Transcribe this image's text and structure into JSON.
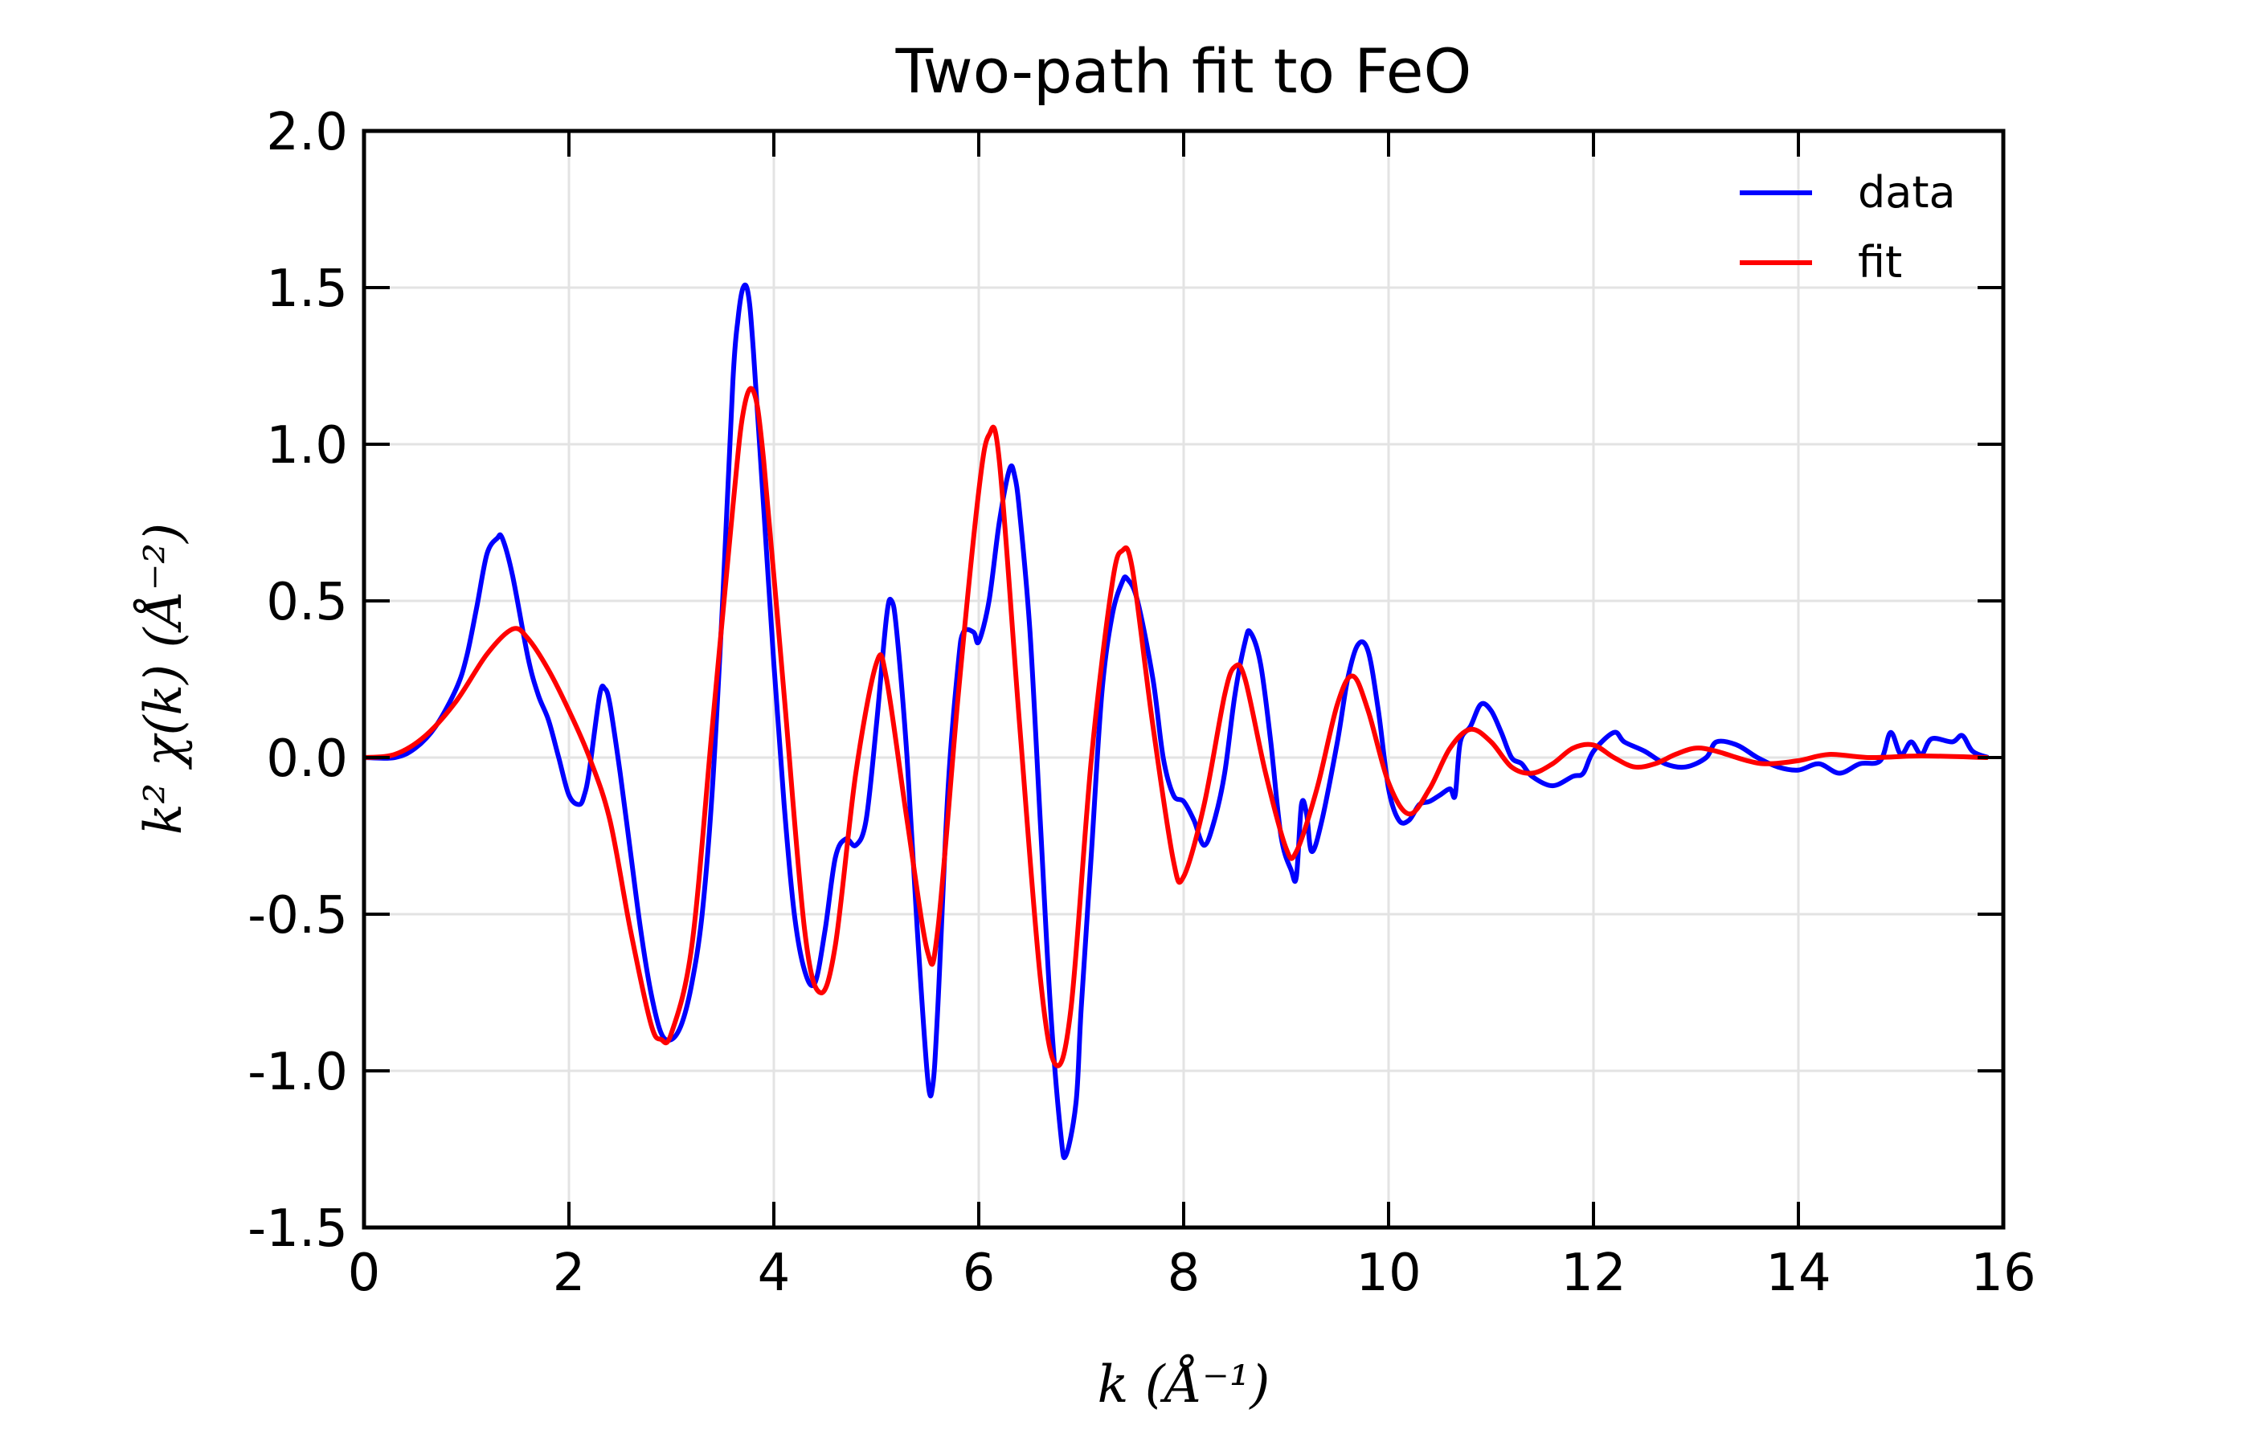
{
  "chart_data": {
    "type": "line",
    "title": "Two-path fit to FeO",
    "xlabel": "k (Å⁻¹)",
    "ylabel": "k² χ(k) (Å⁻²)",
    "xlim": [
      0,
      16
    ],
    "ylim": [
      -1.5,
      2.0
    ],
    "xticks": [
      0,
      2,
      4,
      6,
      8,
      10,
      12,
      14,
      16
    ],
    "xtick_labels": [
      "0",
      "2",
      "4",
      "6",
      "8",
      "10",
      "12",
      "14",
      "16"
    ],
    "yticks": [
      -1.5,
      -1.0,
      -0.5,
      0.0,
      0.5,
      1.0,
      1.5,
      2.0
    ],
    "ytick_labels": [
      "-1.5",
      "-1.0",
      "-0.5",
      "0.0",
      "0.5",
      "1.0",
      "1.5",
      "2.0"
    ],
    "grid": true,
    "legend_position": "top-right",
    "series": [
      {
        "name": "data",
        "color": "#0000ff",
        "x": [
          0,
          0.3,
          0.5,
          0.7,
          0.9,
          1.0,
          1.1,
          1.2,
          1.3,
          1.35,
          1.45,
          1.6,
          1.7,
          1.8,
          1.9,
          2.0,
          2.1,
          2.15,
          2.2,
          2.3,
          2.35,
          2.4,
          2.5,
          2.6,
          2.7,
          2.8,
          2.9,
          3.0,
          3.1,
          3.2,
          3.3,
          3.4,
          3.5,
          3.6,
          3.65,
          3.7,
          3.75,
          3.8,
          3.9,
          4.0,
          4.1,
          4.2,
          4.3,
          4.4,
          4.5,
          4.6,
          4.7,
          4.8,
          4.9,
          5.0,
          5.1,
          5.15,
          5.2,
          5.3,
          5.4,
          5.5,
          5.55,
          5.6,
          5.7,
          5.8,
          5.85,
          5.95,
          6.0,
          6.1,
          6.2,
          6.3,
          6.35,
          6.4,
          6.5,
          6.6,
          6.7,
          6.8,
          6.85,
          6.95,
          7.0,
          7.1,
          7.2,
          7.3,
          7.4,
          7.45,
          7.55,
          7.7,
          7.8,
          7.9,
          8.0,
          8.1,
          8.2,
          8.3,
          8.4,
          8.5,
          8.6,
          8.65,
          8.75,
          8.85,
          8.95,
          9.05,
          9.1,
          9.15,
          9.2,
          9.25,
          9.35,
          9.5,
          9.6,
          9.7,
          9.8,
          9.9,
          10.0,
          10.1,
          10.2,
          10.3,
          10.4,
          10.5,
          10.6,
          10.65,
          10.7,
          10.8,
          10.9,
          11.0,
          11.1,
          11.2,
          11.3,
          11.4,
          11.6,
          11.8,
          11.9,
          12.0,
          12.2,
          12.3,
          12.5,
          12.7,
          12.9,
          13.1,
          13.2,
          13.4,
          13.6,
          13.8,
          14.0,
          14.2,
          14.4,
          14.6,
          14.8,
          14.9,
          15.0,
          15.1,
          15.2,
          15.3,
          15.5,
          15.6,
          15.7,
          15.85
        ],
        "y": [
          0,
          0.0,
          0.03,
          0.1,
          0.22,
          0.32,
          0.48,
          0.65,
          0.7,
          0.7,
          0.58,
          0.32,
          0.2,
          0.12,
          0.0,
          -0.12,
          -0.15,
          -0.12,
          -0.04,
          0.2,
          0.22,
          0.17,
          -0.05,
          -0.3,
          -0.55,
          -0.75,
          -0.88,
          -0.9,
          -0.85,
          -0.72,
          -0.5,
          -0.1,
          0.5,
          1.2,
          1.4,
          1.5,
          1.48,
          1.3,
          0.8,
          0.3,
          -0.15,
          -0.5,
          -0.68,
          -0.72,
          -0.55,
          -0.32,
          -0.26,
          -0.28,
          -0.2,
          0.1,
          0.45,
          0.5,
          0.4,
          0.0,
          -0.55,
          -1.02,
          -1.05,
          -0.8,
          -0.1,
          0.3,
          0.4,
          0.4,
          0.37,
          0.5,
          0.75,
          0.92,
          0.9,
          0.78,
          0.4,
          -0.2,
          -0.8,
          -1.2,
          -1.27,
          -1.1,
          -0.8,
          -0.3,
          0.2,
          0.45,
          0.56,
          0.57,
          0.5,
          0.25,
          0.0,
          -0.12,
          -0.14,
          -0.2,
          -0.28,
          -0.2,
          -0.05,
          0.2,
          0.37,
          0.4,
          0.3,
          0.05,
          -0.25,
          -0.36,
          -0.38,
          -0.15,
          -0.18,
          -0.3,
          -0.2,
          0.05,
          0.25,
          0.36,
          0.34,
          0.15,
          -0.1,
          -0.2,
          -0.2,
          -0.15,
          -0.14,
          -0.12,
          -0.1,
          -0.12,
          0.05,
          0.1,
          0.17,
          0.15,
          0.08,
          0.0,
          -0.02,
          -0.06,
          -0.09,
          -0.06,
          -0.05,
          0.02,
          0.08,
          0.05,
          0.02,
          -0.02,
          -0.03,
          0.0,
          0.05,
          0.04,
          0.0,
          -0.03,
          -0.04,
          -0.02,
          -0.05,
          -0.02,
          -0.01,
          0.08,
          0.01,
          0.05,
          0.01,
          0.06,
          0.05,
          0.07,
          0.02,
          0.0
        ]
      },
      {
        "name": "fit",
        "color": "#ff0000",
        "x": [
          0,
          0.3,
          0.6,
          0.9,
          1.2,
          1.45,
          1.6,
          1.8,
          2.0,
          2.2,
          2.4,
          2.6,
          2.8,
          2.9,
          3.0,
          3.2,
          3.4,
          3.6,
          3.7,
          3.8,
          3.9,
          4.1,
          4.3,
          4.45,
          4.6,
          4.8,
          5.0,
          5.1,
          5.3,
          5.5,
          5.6,
          5.8,
          6.0,
          6.1,
          6.2,
          6.4,
          6.6,
          6.75,
          6.9,
          7.1,
          7.3,
          7.4,
          7.5,
          7.7,
          7.9,
          8.0,
          8.2,
          8.4,
          8.5,
          8.6,
          8.8,
          9.0,
          9.1,
          9.3,
          9.5,
          9.65,
          9.8,
          10.0,
          10.2,
          10.4,
          10.6,
          10.8,
          11.0,
          11.2,
          11.4,
          11.6,
          11.8,
          12.0,
          12.2,
          12.4,
          12.6,
          12.8,
          13.0,
          13.2,
          13.5,
          13.7,
          14.0,
          14.3,
          14.7,
          15.2,
          15.85
        ],
        "y": [
          0,
          0.01,
          0.07,
          0.18,
          0.33,
          0.41,
          0.38,
          0.28,
          0.15,
          0.0,
          -0.2,
          -0.55,
          -0.85,
          -0.9,
          -0.88,
          -0.6,
          0.1,
          0.8,
          1.1,
          1.17,
          0.95,
          0.2,
          -0.55,
          -0.75,
          -0.6,
          -0.05,
          0.3,
          0.25,
          -0.2,
          -0.62,
          -0.55,
          0.2,
          0.85,
          1.03,
          0.95,
          0.1,
          -0.7,
          -0.98,
          -0.8,
          0.0,
          0.55,
          0.66,
          0.6,
          0.1,
          -0.33,
          -0.38,
          -0.15,
          0.2,
          0.29,
          0.25,
          -0.05,
          -0.29,
          -0.3,
          -0.1,
          0.17,
          0.26,
          0.15,
          -0.08,
          -0.18,
          -0.1,
          0.03,
          0.09,
          0.05,
          -0.03,
          -0.05,
          -0.02,
          0.03,
          0.04,
          0.0,
          -0.03,
          -0.02,
          0.01,
          0.03,
          0.02,
          -0.01,
          -0.02,
          -0.01,
          0.01,
          0.0,
          0.005,
          0.0
        ]
      }
    ]
  }
}
